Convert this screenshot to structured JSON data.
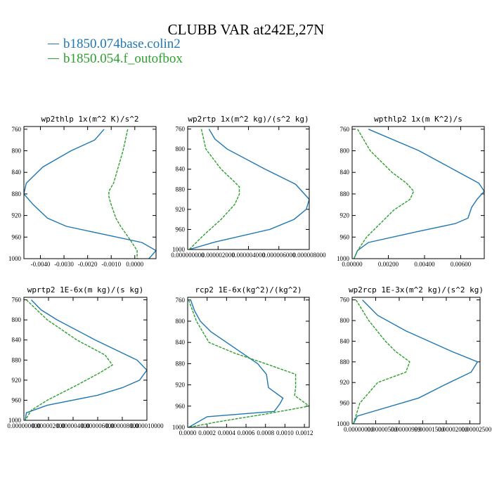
{
  "title": "CLUBB VAR at242E,27N",
  "colors": {
    "series1": "#1f77b4",
    "series2": "#2ca02c"
  },
  "legend": [
    {
      "name": "b1850.074base.colin2",
      "color": "#1f77b4"
    },
    {
      "name": "b1850.054.f_outofbox",
      "color": "#2ca02c"
    }
  ],
  "chart_data": [
    {
      "type": "line",
      "title": "wp2thlp  1x(m^2 K)/s^2",
      "y_ticks": [
        "760",
        "800",
        "840",
        "880",
        "920",
        "960",
        "1000"
      ],
      "y_range": [
        755,
        1000
      ],
      "x_ticks": [
        "-0.0040",
        "-0.0030",
        "-0.0020",
        "-0.0010",
        "0.0000"
      ],
      "x_tick_values": [
        -0.004,
        -0.003,
        -0.002,
        -0.001,
        0.0
      ],
      "x_range": [
        -0.0047,
        0.0009
      ],
      "series": [
        {
          "name": "b1850.074base.colin2",
          "y": [
            760,
            780,
            800,
            830,
            860,
            880,
            900,
            925,
            940,
            970,
            985,
            1000
          ],
          "x": [
            -0.0013,
            -0.0017,
            -0.0027,
            -0.0039,
            -0.0046,
            -0.0047,
            -0.0043,
            -0.0037,
            -0.0029,
            0.0003,
            0.0009,
            0.0006
          ]
        },
        {
          "name": "b1850.054.f_outofbox",
          "y": [
            760,
            780,
            800,
            830,
            860,
            875,
            885,
            900,
            925,
            940,
            965,
            985,
            1000
          ],
          "x": [
            -0.0003,
            -0.0004,
            -0.0005,
            -0.0007,
            -0.0009,
            -0.0011,
            -0.0011,
            -0.001,
            -0.0008,
            -0.0006,
            -0.0002,
            0.0001,
            0.0001
          ]
        }
      ]
    },
    {
      "type": "line",
      "title": "wp2rtp  1x(m^2 kg)/(s^2 kg)",
      "y_ticks": [
        "760",
        "800",
        "840",
        "880",
        "920",
        "960",
        "1000"
      ],
      "y_range": [
        755,
        1000
      ],
      "x_ticks": [
        "0.000000000",
        "0.000002000",
        "0.000004000",
        "0.000006000",
        "0.000008000"
      ],
      "x_tick_values": [
        0.0,
        2e-06,
        4e-06,
        6e-06,
        8e-06
      ],
      "x_range": [
        0.0,
        8e-06
      ],
      "series": [
        {
          "name": "b1850.074base.colin2",
          "y": [
            760,
            780,
            800,
            840,
            870,
            900,
            920,
            940,
            960,
            985,
            1000
          ],
          "x": [
            1.4e-06,
            1.8e-06,
            2.6e-06,
            5.1e-06,
            7.1e-06,
            8e-06,
            7.8e-06,
            7e-06,
            5.4e-06,
            1.8e-06,
            1e-07
          ]
        },
        {
          "name": "b1850.054.f_outofbox",
          "y": [
            760,
            800,
            840,
            860,
            875,
            890,
            910,
            940,
            970,
            1000
          ],
          "x": [
            9e-07,
            1.2e-06,
            2.2e-06,
            2.9e-06,
            3.4e-06,
            3.4e-06,
            3.1e-06,
            2.2e-06,
            1.1e-06,
            1e-07
          ]
        }
      ]
    },
    {
      "type": "line",
      "title": "wpthlp2  1x(m K^2)/s",
      "y_ticks": [
        "760",
        "800",
        "840",
        "880",
        "920",
        "960",
        "1000"
      ],
      "y_range": [
        755,
        1000
      ],
      "x_ticks": [
        "0.00000",
        "0.00200",
        "0.00400",
        "0.00600"
      ],
      "x_tick_values": [
        0.0,
        0.002,
        0.004,
        0.006
      ],
      "x_range": [
        0.0,
        0.0073
      ],
      "series": [
        {
          "name": "b1850.074base.colin2",
          "y": [
            760,
            800,
            840,
            860,
            875,
            890,
            905,
            925,
            935,
            950,
            970,
            985,
            1000
          ],
          "x": [
            0.0009,
            0.0037,
            0.0059,
            0.007,
            0.0073,
            0.0069,
            0.0066,
            0.0064,
            0.0057,
            0.0036,
            0.0009,
            0.0003,
            0.0001
          ]
        },
        {
          "name": "b1850.054.f_outofbox",
          "y": [
            760,
            800,
            840,
            860,
            875,
            890,
            910,
            930,
            960,
            985,
            1000
          ],
          "x": [
            0.0003,
            0.001,
            0.0022,
            0.003,
            0.0034,
            0.0032,
            0.0023,
            0.0017,
            0.0008,
            0.0003,
            0.0001
          ]
        }
      ]
    },
    {
      "type": "line",
      "title": "wprtp2  1E-6x(m kg)/(s kg)",
      "y_ticks": [
        "760",
        "800",
        "840",
        "880",
        "920",
        "960",
        "1000"
      ],
      "y_range": [
        755,
        1000
      ],
      "x_ticks": [
        "0.000000000",
        "0.000002000",
        "0.000004000",
        "0.000006000",
        "0.000008000",
        "0.000010000"
      ],
      "x_tick_values": [
        0.0,
        2e-06,
        4e-06,
        6e-06,
        8e-06,
        1e-05
      ],
      "x_range": [
        0.0,
        1e-05
      ],
      "series": [
        {
          "name": "b1850.074base.colin2",
          "y": [
            760,
            780,
            800,
            840,
            880,
            900,
            920,
            935,
            950,
            970,
            985,
            1000
          ],
          "x": [
            6e-07,
            1.4e-06,
            2.7e-06,
            5.8e-06,
            9.2e-06,
            1e-05,
            9.4e-06,
            8e-06,
            6e-06,
            1.9e-06,
            2e-07,
            1e-07
          ]
        },
        {
          "name": "b1850.054.f_outofbox",
          "y": [
            760,
            800,
            840,
            870,
            890,
            905,
            930,
            960,
            980,
            1000
          ],
          "x": [
            2e-07,
            1.9e-06,
            4.3e-06,
            6.6e-06,
            7.2e-06,
            6.2e-06,
            4.3e-06,
            1.9e-06,
            6e-07,
            1e-07
          ]
        }
      ]
    },
    {
      "type": "line",
      "title": "rcp2  1E-6x(kg^2)/(kg^2)",
      "y_ticks": [
        "760",
        "800",
        "840",
        "880",
        "920",
        "960",
        "1000"
      ],
      "y_range": [
        755,
        1000
      ],
      "x_ticks": [
        "0.0000",
        "0.0002",
        "0.0004",
        "0.0006",
        "0.0008",
        "0.0010",
        "0.0012"
      ],
      "x_tick_values": [
        0.0,
        0.0002,
        0.0004,
        0.0006,
        0.0008,
        0.001,
        0.0012
      ],
      "x_range": [
        0.0,
        0.00125
      ],
      "series": [
        {
          "name": "b1850.074base.colin2",
          "y": [
            760,
            780,
            800,
            820,
            840,
            860,
            880,
            900,
            925,
            945,
            955,
            970,
            980,
            1000
          ],
          "x": [
            3e-05,
            7e-05,
            0.00013,
            0.00024,
            0.0004,
            0.00056,
            0.00072,
            0.00081,
            0.00083,
            0.00098,
            0.00095,
            0.00089,
            0.0002,
            1e-05
          ]
        },
        {
          "name": "b1850.054.f_outofbox",
          "y": [
            760,
            800,
            840,
            860,
            880,
            900,
            910,
            925,
            940,
            960,
            975,
            990,
            1000
          ],
          "x": [
            1e-05,
            9e-05,
            0.00022,
            0.00048,
            0.0008,
            0.00111,
            0.00111,
            0.00111,
            0.0011,
            0.00125,
            0.0008,
            0.0003,
            1e-05
          ]
        }
      ]
    },
    {
      "type": "line",
      "title": "wp2rcp  1E-3x(m^2 kg)/(s^2 kg)",
      "y_ticks": [
        "760",
        "800",
        "840",
        "880",
        "920",
        "960",
        "1000"
      ],
      "y_range": [
        755,
        1000
      ],
      "x_ticks": [
        "0.00000000",
        "0.00000500",
        "0.00000999",
        "0.00001500",
        "0.00002000",
        "0.00002500"
      ],
      "x_tick_labels_overlap": true,
      "x_range": [
        0.0,
        1.0
      ],
      "series": [
        {
          "name": "b1850.074base.colin2",
          "y": [
            760,
            790,
            820,
            860,
            880,
            900,
            925,
            950,
            985,
            1000
          ],
          "x": [
            0.08,
            0.2,
            0.42,
            0.78,
            0.98,
            0.93,
            0.72,
            0.52,
            0.04,
            0.01
          ]
        },
        {
          "name": "b1850.054.f_outofbox",
          "y": [
            760,
            800,
            840,
            860,
            880,
            900,
            920,
            960,
            1000
          ],
          "x": [
            0.03,
            0.13,
            0.26,
            0.34,
            0.45,
            0.42,
            0.2,
            0.06,
            0.01
          ]
        }
      ]
    }
  ]
}
